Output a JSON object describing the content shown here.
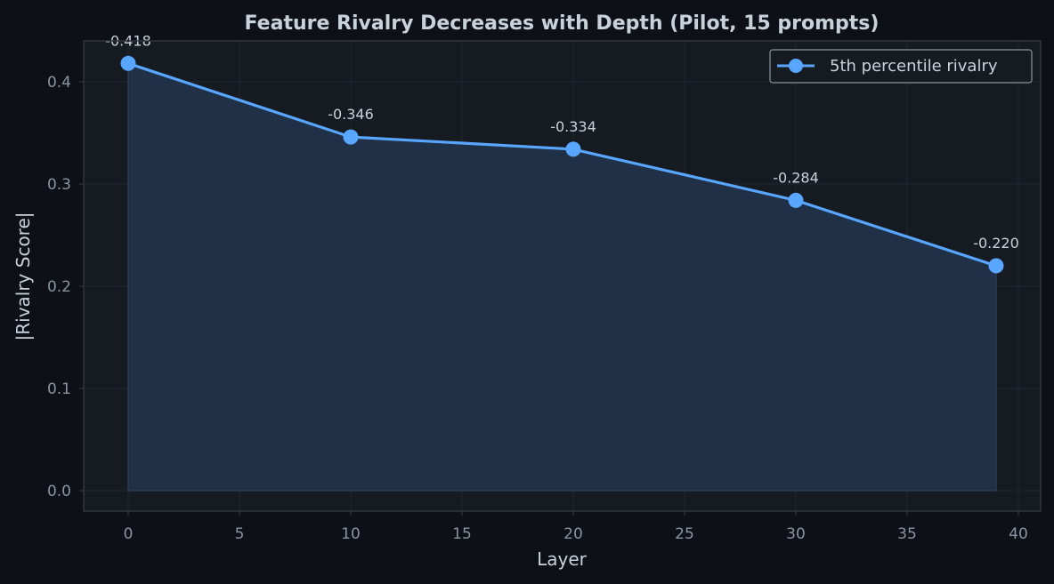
{
  "chart_data": {
    "type": "line",
    "title": "Feature Rivalry Decreases with Depth (Pilot, 15 prompts)",
    "xlabel": "Layer",
    "ylabel": "|Rivalry Score|",
    "xlim": [
      -2,
      41
    ],
    "ylim": [
      -0.02,
      0.44
    ],
    "x_ticks": [
      0,
      5,
      10,
      15,
      20,
      25,
      30,
      35,
      40
    ],
    "y_ticks": [
      0.0,
      0.1,
      0.2,
      0.3,
      0.4
    ],
    "x_tick_labels": [
      "0",
      "5",
      "10",
      "15",
      "20",
      "25",
      "30",
      "35",
      "40"
    ],
    "y_tick_labels": [
      "0.0",
      "0.1",
      "0.2",
      "0.3",
      "0.4"
    ],
    "grid": true,
    "legend_position": "top-right",
    "series": [
      {
        "name": "5th percentile rivalry",
        "x": [
          0,
          10,
          20,
          30,
          39
        ],
        "y": [
          0.418,
          0.346,
          0.334,
          0.284,
          0.22
        ],
        "labels": [
          "-0.418",
          "-0.346",
          "-0.334",
          "-0.284",
          "-0.220"
        ],
        "color": "#58a6ff",
        "fill": true
      }
    ]
  },
  "colors": {
    "page_bg": "#0d1117",
    "plot_bg": "#161b22",
    "grid": "#21262d",
    "frame": "#30363d",
    "fill": "#1f3047",
    "line": "#58a6ff"
  }
}
